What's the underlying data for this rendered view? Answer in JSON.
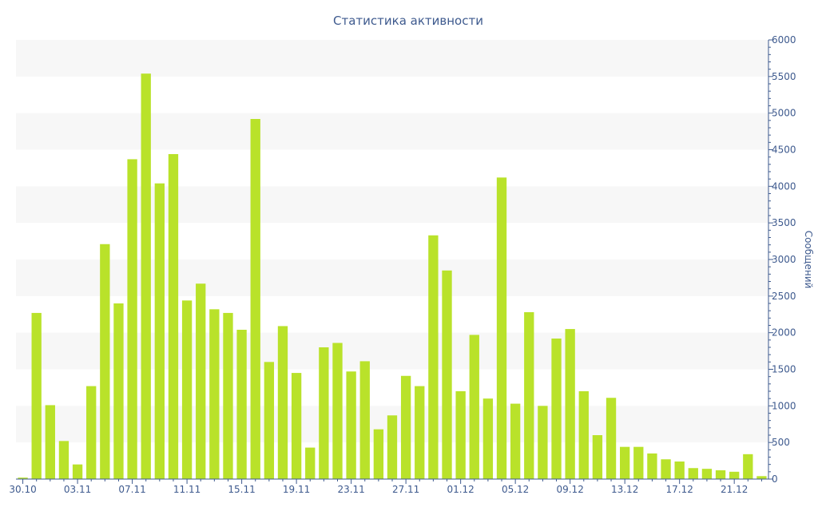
{
  "chart_data": {
    "type": "bar",
    "title": "Статистика активности",
    "xlabel": "",
    "ylabel": "Сообщений",
    "ylim": [
      0,
      6000
    ],
    "y_ticks": [
      "0",
      "500",
      "1000",
      "1500",
      "2000",
      "2500",
      "3000",
      "3500",
      "4000",
      "4500",
      "5000",
      "5500",
      "6000"
    ],
    "y_axis_side": "right",
    "x_tick_labels": [
      "30.10",
      "03.11",
      "07.11",
      "11.11",
      "15.11",
      "19.11",
      "23.11",
      "27.11",
      "01.12",
      "05.12",
      "09.12",
      "13.12",
      "17.12",
      "21.12"
    ],
    "grid": "alternating horizontal bands",
    "bar_color": "#b9e22a",
    "band_color": "#f7f7f7",
    "text_color": "#3e5a8e",
    "categories": [
      "30.10",
      "31.10",
      "01.11",
      "02.11",
      "03.11",
      "04.11",
      "05.11",
      "06.11",
      "07.11",
      "08.11",
      "09.11",
      "10.11",
      "11.11",
      "12.11",
      "13.11",
      "14.11",
      "15.11",
      "16.11",
      "17.11",
      "18.11",
      "19.11",
      "20.11",
      "21.11",
      "22.11",
      "23.11",
      "24.11",
      "25.11",
      "26.11",
      "27.11",
      "28.11",
      "29.11",
      "30.11",
      "01.12",
      "02.12",
      "03.12",
      "04.12",
      "05.12",
      "06.12",
      "07.12",
      "08.12",
      "09.12",
      "10.12",
      "11.12",
      "12.12",
      "13.12",
      "14.12",
      "15.12",
      "16.12",
      "17.12",
      "18.12",
      "19.12",
      "20.12",
      "21.12",
      "22.12",
      "23.12"
    ],
    "values": [
      20,
      2270,
      1010,
      520,
      200,
      1270,
      3210,
      2400,
      4370,
      5540,
      4040,
      4440,
      2440,
      2670,
      2320,
      2270,
      2040,
      4920,
      1600,
      2090,
      1450,
      430,
      1800,
      1860,
      1470,
      1610,
      680,
      870,
      1410,
      1270,
      3330,
      2850,
      1200,
      1970,
      1100,
      4120,
      1030,
      2280,
      1000,
      1920,
      2050,
      1200,
      600,
      1110,
      440,
      440,
      350,
      270,
      240,
      150,
      140,
      120,
      100,
      340,
      40
    ]
  }
}
